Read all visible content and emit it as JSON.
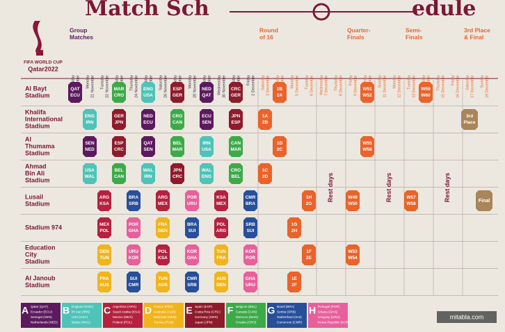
{
  "header": {
    "title_parts": [
      "Match Sch",
      "edule"
    ],
    "logo_lines": [
      "FIFA WORLD CUP",
      "Qatar2022"
    ]
  },
  "stages": [
    {
      "lines": [
        "Group",
        "Matches"
      ],
      "from": "20 November",
      "color": "#5b1a5e"
    },
    {
      "lines": [
        "Round",
        "of 16"
      ],
      "from": "3 December",
      "color": "#e9632b"
    },
    {
      "lines": [
        "Quarter-",
        "Finals"
      ],
      "from": "9 December",
      "color": "#e9632b"
    },
    {
      "lines": [
        "Semi-",
        "Finals"
      ],
      "from": "13 December",
      "color": "#e9632b"
    },
    {
      "lines": [
        "3rd Place",
        "& Final"
      ],
      "from": "17 December",
      "color": "#e9632b"
    }
  ],
  "dates": [
    {
      "weekday": "Sunday",
      "date": "20 November"
    },
    {
      "weekday": "Monday",
      "date": "21 November"
    },
    {
      "weekday": "Tuesday",
      "date": "22 November"
    },
    {
      "weekday": "Wednesday",
      "date": "23 November"
    },
    {
      "weekday": "Thursday",
      "date": "24 November"
    },
    {
      "weekday": "Friday",
      "date": "25 November"
    },
    {
      "weekday": "Saturday",
      "date": "26 November"
    },
    {
      "weekday": "Sunday",
      "date": "27 November"
    },
    {
      "weekday": "Monday",
      "date": "28 November"
    },
    {
      "weekday": "Tuesday",
      "date": "29 November"
    },
    {
      "weekday": "Wednesday",
      "date": "30 November"
    },
    {
      "weekday": "Thursday",
      "date": "1 December"
    },
    {
      "weekday": "Friday",
      "date": "2 December"
    },
    {
      "weekday": "Saturday",
      "date": "3 December"
    },
    {
      "weekday": "Sunday",
      "date": "4 December"
    },
    {
      "weekday": "Monday",
      "date": "5 December"
    },
    {
      "weekday": "Tuesday",
      "date": "6 December"
    },
    {
      "weekday": "Wednesday",
      "date": "7 December"
    },
    {
      "weekday": "Thursday",
      "date": "8 December"
    },
    {
      "weekday": "Friday",
      "date": "9 December"
    },
    {
      "weekday": "Saturday",
      "date": "10 December"
    },
    {
      "weekday": "Sunday",
      "date": "11 December"
    },
    {
      "weekday": "Monday",
      "date": "12 December"
    },
    {
      "weekday": "Tuesday",
      "date": "13 December"
    },
    {
      "weekday": "Wednesday",
      "date": "14 December"
    },
    {
      "weekday": "Thursday",
      "date": "15 December"
    },
    {
      "weekday": "Friday",
      "date": "16 December"
    },
    {
      "weekday": "Saturday",
      "date": "17 December"
    },
    {
      "weekday": "Sunday",
      "date": "18 December"
    }
  ],
  "rest_days": [
    {
      "label": "Rest days",
      "dates": [
        "7 December",
        "8 December"
      ]
    },
    {
      "label": "Rest days",
      "dates": [
        "11 December",
        "12 December"
      ]
    },
    {
      "label": "Rest days",
      "dates": [
        "15 December",
        "16 December"
      ]
    }
  ],
  "groups": [
    {
      "letter": "A",
      "color": "#5b1a5e",
      "teams": [
        "Qatar (QAT)",
        "Ecuador (ECU)",
        "Senegal (SEN)",
        "Netherlands (NED)"
      ]
    },
    {
      "letter": "B",
      "color": "#4fc3b8",
      "teams": [
        "England (ENG)",
        "IR Iran (IRN)",
        "USA (USA)",
        "Wales (WAL)"
      ]
    },
    {
      "letter": "C",
      "color": "#b5213f",
      "teams": [
        "Argentina (ARG)",
        "Saudi Arabia (KSA)",
        "Mexico (MEX)",
        "Poland (POL)"
      ]
    },
    {
      "letter": "D",
      "color": "#f0b41c",
      "teams": [
        "France (FRA)",
        "Australia (AUS)",
        "Denmark (DEN)",
        "Tunisia (TUN)"
      ]
    },
    {
      "letter": "E",
      "color": "#8e1b2c",
      "teams": [
        "Spain (ESP)",
        "Costa Rica (CRC)",
        "Germany (GER)",
        "Japan (JPN)"
      ]
    },
    {
      "letter": "F",
      "color": "#3daa4a",
      "teams": [
        "Belgium (BEL)",
        "Canada (CAN)",
        "Morocco (MAR)",
        "Croatia (CRO)"
      ]
    },
    {
      "letter": "G",
      "color": "#274f9a",
      "teams": [
        "Brazil (BRA)",
        "Serbia (SRB)",
        "Switzerland (SUI)",
        "Cameroon (CMR)"
      ]
    },
    {
      "letter": "H",
      "color": "#e7609b",
      "teams": [
        "Portugal (POR)",
        "Ghana (GHA)",
        "Uruguay (URU)",
        "Korea Republic (KOR)"
      ]
    }
  ],
  "stadiums": [
    {
      "lines": [
        "Al Bayt",
        "Stadium"
      ],
      "matches": [
        {
          "date": "20 November",
          "teams": [
            "QAT",
            "ECU"
          ],
          "group": "A"
        },
        {
          "date": "23 November",
          "teams": [
            "MAR",
            "CRO"
          ],
          "group": "F"
        },
        {
          "date": "25 November",
          "teams": [
            "ENG",
            "USA"
          ],
          "group": "B"
        },
        {
          "date": "27 November",
          "teams": [
            "ESP",
            "GER"
          ],
          "group": "E"
        },
        {
          "date": "29 November",
          "teams": [
            "NED",
            "QAT"
          ],
          "group": "A"
        },
        {
          "date": "1 December",
          "teams": [
            "CRC",
            "GER"
          ],
          "group": "E"
        },
        {
          "date": "4 December",
          "teams": [
            "1B",
            "2A"
          ],
          "color": "#e9632b"
        },
        {
          "date": "10 December",
          "teams": [
            "W51",
            "W52"
          ],
          "color": "#e9632b"
        },
        {
          "date": "14 December",
          "teams": [
            "W59",
            "W60"
          ],
          "color": "#e9632b"
        }
      ]
    },
    {
      "lines": [
        "Khalifa",
        "International",
        "Stadium"
      ],
      "matches": [
        {
          "date": "21 November",
          "teams": [
            "ENG",
            "IRN"
          ],
          "group": "B"
        },
        {
          "date": "23 November",
          "teams": [
            "GER",
            "JPN"
          ],
          "group": "E"
        },
        {
          "date": "25 November",
          "teams": [
            "NED",
            "ECU"
          ],
          "group": "A"
        },
        {
          "date": "27 November",
          "teams": [
            "CRO",
            "CAN"
          ],
          "group": "F"
        },
        {
          "date": "29 November",
          "teams": [
            "ECU",
            "SEN"
          ],
          "group": "A"
        },
        {
          "date": "1 December",
          "teams": [
            "JPN",
            "ESP"
          ],
          "group": "E"
        },
        {
          "date": "3 December",
          "teams": [
            "1A",
            "2B"
          ],
          "color": "#e9632b"
        },
        {
          "date": "17 December",
          "teams": [
            "3rd",
            "Place"
          ],
          "color": "#a8865a"
        }
      ]
    },
    {
      "lines": [
        "Al",
        "Thumama",
        "Stadium"
      ],
      "matches": [
        {
          "date": "21 November",
          "teams": [
            "SEN",
            "NED"
          ],
          "group": "A"
        },
        {
          "date": "23 November",
          "teams": [
            "ESP",
            "CRC"
          ],
          "group": "E"
        },
        {
          "date": "25 November",
          "teams": [
            "QAT",
            "SEN"
          ],
          "group": "A"
        },
        {
          "date": "27 November",
          "teams": [
            "BEL",
            "MAR"
          ],
          "group": "F"
        },
        {
          "date": "29 November",
          "teams": [
            "IRN",
            "USA"
          ],
          "group": "B"
        },
        {
          "date": "1 December",
          "teams": [
            "CAN",
            "MAR"
          ],
          "group": "F"
        },
        {
          "date": "4 December",
          "teams": [
            "1D",
            "2C"
          ],
          "color": "#e9632b"
        },
        {
          "date": "10 December",
          "teams": [
            "W55",
            "W56"
          ],
          "color": "#e9632b"
        }
      ]
    },
    {
      "lines": [
        "Ahmad",
        "Bin Ali",
        "Stadium"
      ],
      "matches": [
        {
          "date": "21 November",
          "teams": [
            "USA",
            "WAL"
          ],
          "group": "B"
        },
        {
          "date": "23 November",
          "teams": [
            "BEL",
            "CAN"
          ],
          "group": "F"
        },
        {
          "date": "25 November",
          "teams": [
            "WAL",
            "IRN"
          ],
          "group": "B"
        },
        {
          "date": "27 November",
          "teams": [
            "JPN",
            "CRC"
          ],
          "group": "E"
        },
        {
          "date": "29 November",
          "teams": [
            "WAL",
            "ENG"
          ],
          "group": "B"
        },
        {
          "date": "1 December",
          "teams": [
            "CRO",
            "BEL"
          ],
          "group": "F"
        },
        {
          "date": "3 December",
          "teams": [
            "1C",
            "2D"
          ],
          "color": "#e9632b"
        }
      ]
    },
    {
      "lines": [
        "Lusail",
        "Stadium"
      ],
      "matches": [
        {
          "date": "22 November",
          "teams": [
            "ARG",
            "KSA"
          ],
          "group": "C"
        },
        {
          "date": "24 November",
          "teams": [
            "BRA",
            "SRB"
          ],
          "group": "G"
        },
        {
          "date": "26 November",
          "teams": [
            "ARG",
            "MEX"
          ],
          "group": "C"
        },
        {
          "date": "28 November",
          "teams": [
            "POR",
            "URU"
          ],
          "group": "H"
        },
        {
          "date": "30 November",
          "teams": [
            "KSA",
            "MEX"
          ],
          "group": "C"
        },
        {
          "date": "2 December",
          "teams": [
            "CMR",
            "BRA"
          ],
          "group": "G"
        },
        {
          "date": "6 December",
          "teams": [
            "1H",
            "2G"
          ],
          "color": "#e9632b"
        },
        {
          "date": "9 December",
          "teams": [
            "W49",
            "W50"
          ],
          "color": "#e9632b"
        },
        {
          "date": "13 December",
          "teams": [
            "W57",
            "W58"
          ],
          "color": "#e9632b"
        },
        {
          "date": "18 December",
          "teams": [
            "Final"
          ],
          "color": "#a8865a"
        }
      ]
    },
    {
      "lines": [
        "Stadium 974"
      ],
      "matches": [
        {
          "date": "22 November",
          "teams": [
            "MEX",
            "POL"
          ],
          "group": "C"
        },
        {
          "date": "24 November",
          "teams": [
            "POR",
            "GHA"
          ],
          "group": "H"
        },
        {
          "date": "26 November",
          "teams": [
            "FRA",
            "DEN"
          ],
          "group": "D"
        },
        {
          "date": "28 November",
          "teams": [
            "BRA",
            "SUI"
          ],
          "group": "G"
        },
        {
          "date": "30 November",
          "teams": [
            "POL",
            "ARG"
          ],
          "group": "C"
        },
        {
          "date": "2 December",
          "teams": [
            "SRB",
            "SUI"
          ],
          "group": "G"
        },
        {
          "date": "5 December",
          "teams": [
            "1G",
            "2H"
          ],
          "color": "#e9632b"
        }
      ]
    },
    {
      "lines": [
        "Education",
        "City",
        "Stadium"
      ],
      "matches": [
        {
          "date": "22 November",
          "teams": [
            "DEN",
            "TUN"
          ],
          "group": "D"
        },
        {
          "date": "24 November",
          "teams": [
            "URU",
            "KOR"
          ],
          "group": "H"
        },
        {
          "date": "26 November",
          "teams": [
            "POL",
            "KSA"
          ],
          "group": "C"
        },
        {
          "date": "28 November",
          "teams": [
            "KOR",
            "GHA"
          ],
          "group": "H"
        },
        {
          "date": "30 November",
          "teams": [
            "TUN",
            "FRA"
          ],
          "group": "D"
        },
        {
          "date": "2 December",
          "teams": [
            "KOR",
            "POR"
          ],
          "group": "H"
        },
        {
          "date": "6 December",
          "teams": [
            "1F",
            "2E"
          ],
          "color": "#e9632b"
        },
        {
          "date": "9 December",
          "teams": [
            "W53",
            "W54"
          ],
          "color": "#e9632b"
        }
      ]
    },
    {
      "lines": [
        "Al Janoub",
        "Stadium"
      ],
      "matches": [
        {
          "date": "22 November",
          "teams": [
            "FRA",
            "AUS"
          ],
          "group": "D"
        },
        {
          "date": "24 November",
          "teams": [
            "SUI",
            "CMR"
          ],
          "group": "G"
        },
        {
          "date": "26 November",
          "teams": [
            "TUN",
            "AUS"
          ],
          "group": "D"
        },
        {
          "date": "28 November",
          "teams": [
            "CMR",
            "SRB"
          ],
          "group": "G"
        },
        {
          "date": "30 November",
          "teams": [
            "AUS",
            "DEN"
          ],
          "group": "D"
        },
        {
          "date": "2 December",
          "teams": [
            "GHA",
            "URU"
          ],
          "group": "H"
        },
        {
          "date": "5 December",
          "teams": [
            "1E",
            "2F"
          ],
          "color": "#e9632b"
        }
      ]
    }
  ],
  "watermark": "mitabla.com"
}
